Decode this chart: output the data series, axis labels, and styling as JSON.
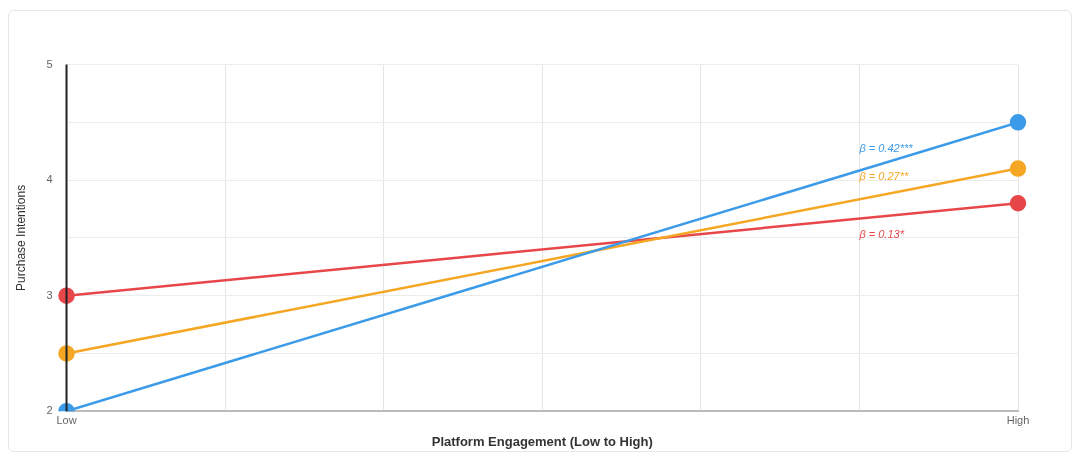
{
  "chart_data": {
    "type": "line",
    "xlabel": "Platform Engagement (Low to High)",
    "ylabel": "Purchase Intentions",
    "categories": [
      "Low",
      null,
      null,
      null,
      null,
      null,
      "High"
    ],
    "series": [
      {
        "color": "#3b9be8",
        "values": [
          2,
          null,
          null,
          null,
          null,
          null,
          4.5
        ]
      },
      {
        "color": "#f5a623",
        "values": [
          2.5,
          null,
          null,
          null,
          null,
          null,
          4.1
        ]
      },
      {
        "color": "#e8474a",
        "values": [
          3,
          null,
          null,
          null,
          null,
          null,
          3.8
        ]
      }
    ],
    "ylim": [
      2,
      5
    ],
    "yticks": [
      2,
      {
        "value": 2.5,
        "label": null
      },
      3,
      {
        "value": 3.5,
        "label": null
      },
      4,
      {
        "value": 4.5,
        "label": null
      },
      5
    ],
    "annotations": [
      "β = 0.42***",
      "β = 0.27**",
      "β = 0.13*"
    ],
    "grid": true,
    "marker": "circle",
    "line_style": "solid",
    "legend": false
  }
}
